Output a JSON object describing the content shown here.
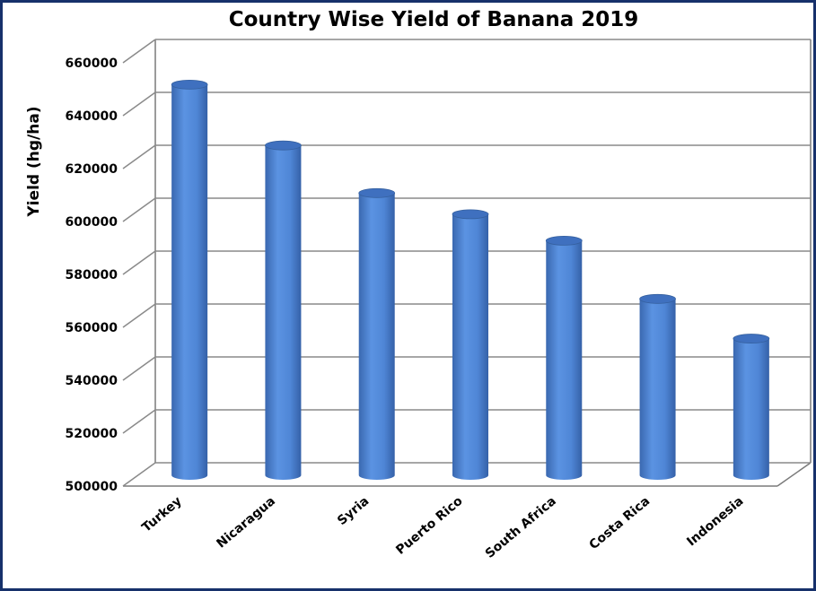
{
  "chart_data": {
    "type": "bar",
    "title": "Country Wise Yield of Banana 2019",
    "xlabel": "",
    "ylabel": "Yield (hg/ha)",
    "categories": [
      "Turkey",
      "Nicaragua",
      "Syria",
      "Puerto Rico",
      "South Africa",
      "Costa Rica",
      "Indonesia"
    ],
    "values": [
      647000,
      624000,
      606000,
      598000,
      588000,
      566000,
      551000
    ],
    "ylim": [
      500000,
      660000
    ],
    "yticks": [
      "500000",
      "520000",
      "540000",
      "560000",
      "580000",
      "600000",
      "620000",
      "640000",
      "660000"
    ],
    "grid": true,
    "legend": "none",
    "bar_style": "3d-cylinder",
    "bar_color": "#4a7fd1",
    "frame_color": "#17316b"
  }
}
